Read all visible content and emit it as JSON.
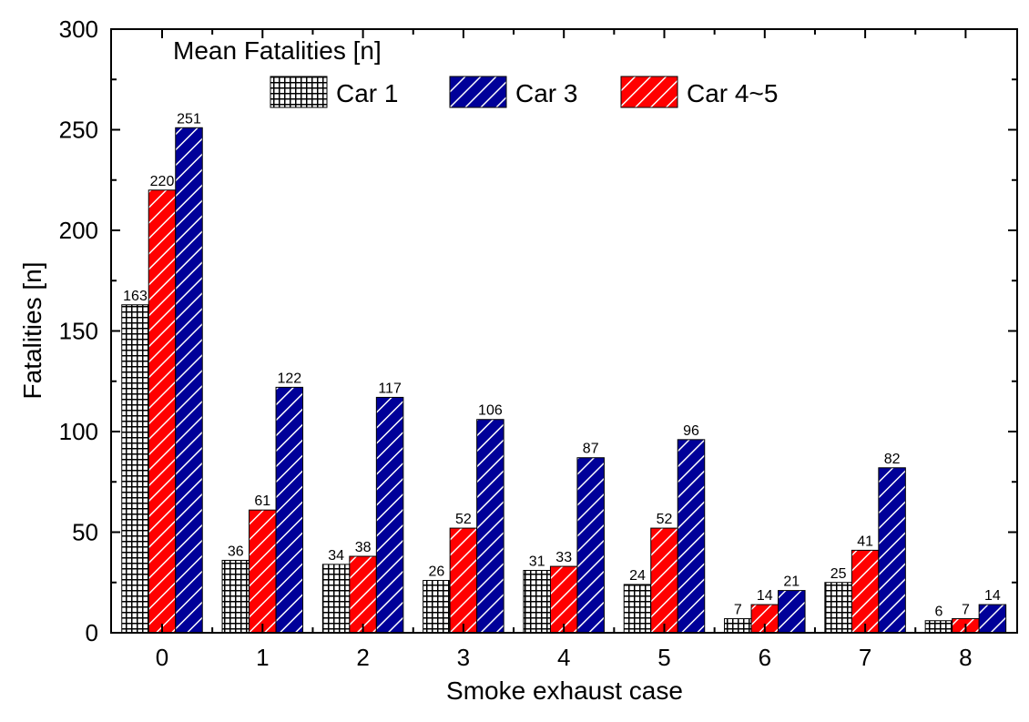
{
  "chart_data": {
    "type": "bar",
    "title": "",
    "legend_title": "Mean Fatalities [n]",
    "xlabel": "Smoke exhaust case",
    "ylabel": "Fatalities [n]",
    "categories": [
      "0",
      "1",
      "2",
      "3",
      "4",
      "5",
      "6",
      "7",
      "8"
    ],
    "ylim": [
      0,
      300
    ],
    "yticks": [
      0,
      50,
      100,
      150,
      200,
      250,
      300
    ],
    "legend_position": "top",
    "grid": false,
    "series": [
      {
        "name": "Car 1",
        "values": [
          163,
          36,
          34,
          26,
          31,
          24,
          7,
          25,
          6
        ],
        "labels": [
          "163",
          "36",
          "34",
          "26",
          "31",
          "24",
          "7",
          "25",
          "6"
        ],
        "color": "#000000",
        "pattern": "grid"
      },
      {
        "name": "Car 4~5",
        "values": [
          220,
          61,
          38,
          52,
          33,
          52,
          14,
          41,
          7
        ],
        "labels": [
          "220",
          "61",
          "38",
          "52",
          "33",
          "52",
          "14",
          "41",
          "7"
        ],
        "color": "#ff0000",
        "pattern": "diagonal"
      },
      {
        "name": "Car 3",
        "values": [
          251,
          122,
          117,
          106,
          87,
          96,
          21,
          82,
          14
        ],
        "labels": [
          "251",
          "122",
          "117",
          "106",
          "87",
          "96",
          "21",
          "82",
          "14"
        ],
        "color": "#000099",
        "pattern": "diagonal"
      }
    ],
    "legend_order": [
      0,
      2,
      1
    ]
  }
}
